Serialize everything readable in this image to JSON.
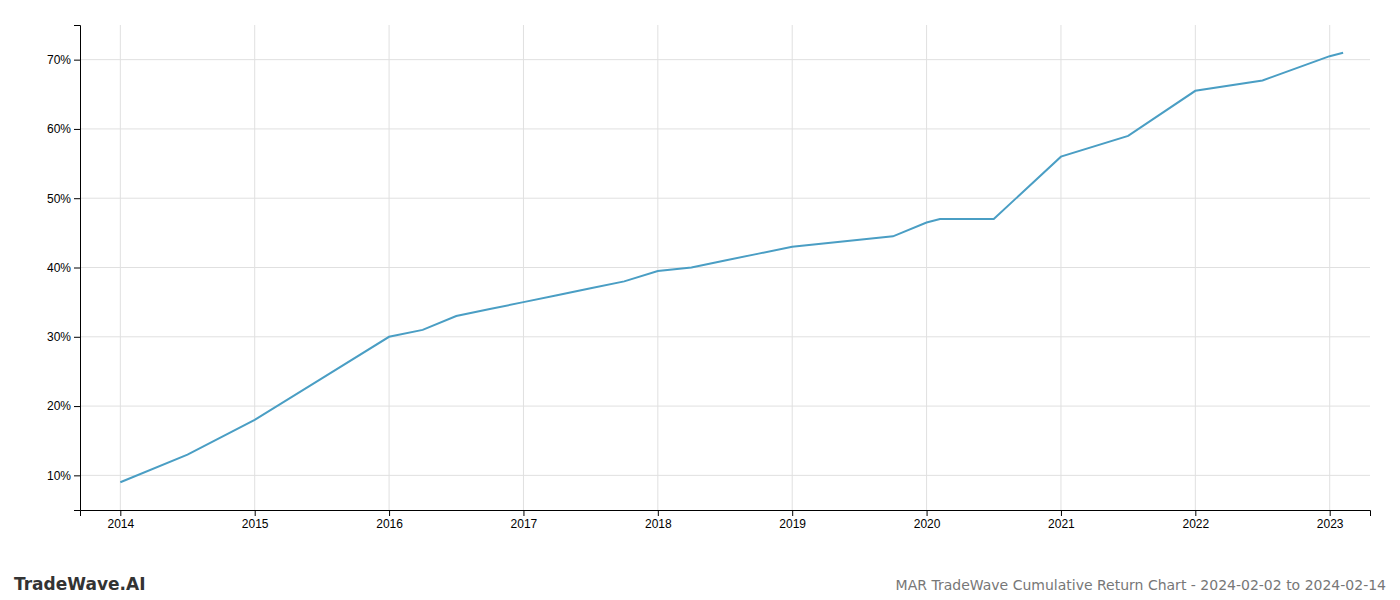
{
  "chart_data": {
    "type": "line",
    "title": "MAR TradeWave Cumulative Return Chart - 2024-02-02 to 2024-02-14",
    "annotations": [
      "TradeWave.AI"
    ],
    "x": [
      2014.0,
      2014.5,
      2015.0,
      2015.5,
      2016.0,
      2016.25,
      2016.5,
      2016.75,
      2017.0,
      2017.25,
      2017.5,
      2017.75,
      2018.0,
      2018.25,
      2018.5,
      2018.75,
      2019.0,
      2019.25,
      2019.5,
      2019.75,
      2020.0,
      2020.1,
      2020.5,
      2021.0,
      2021.5,
      2022.0,
      2022.5,
      2023.0,
      2023.1
    ],
    "values": [
      9,
      13,
      18,
      24,
      30,
      31,
      33,
      34,
      35,
      36,
      37,
      38,
      39.5,
      40,
      41,
      42,
      43,
      43.5,
      44,
      44.5,
      46.5,
      47,
      47,
      56,
      59,
      65.5,
      67,
      70.5,
      71
    ],
    "color": "#4a9ec4",
    "xlim": [
      2013.7,
      2023.3
    ],
    "ylim": [
      5,
      75
    ],
    "xticks": [
      2014,
      2015,
      2016,
      2017,
      2018,
      2019,
      2020,
      2021,
      2022,
      2023
    ],
    "yticks": [
      {
        "value": 10,
        "label": "10%"
      },
      {
        "value": 20,
        "label": "20%"
      },
      {
        "value": 30,
        "label": "30%"
      },
      {
        "value": 40,
        "label": "40%"
      },
      {
        "value": 50,
        "label": "50%"
      },
      {
        "value": 60,
        "label": "60%"
      },
      {
        "value": 70,
        "label": "70%"
      }
    ],
    "grid": true
  }
}
